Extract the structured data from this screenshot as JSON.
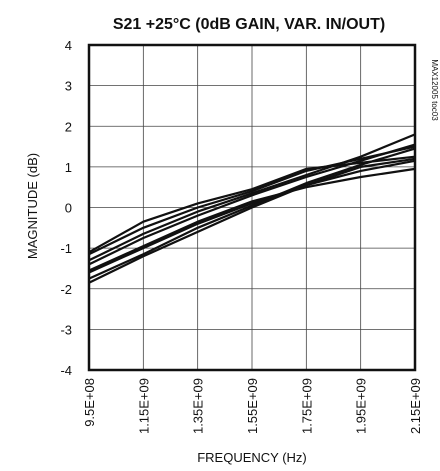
{
  "chart_data": {
    "type": "line",
    "title": "S21 +25°C (0dB GAIN, VAR. IN/OUT)",
    "xlabel": "FREQUENCY (Hz)",
    "ylabel": "MAGNITUDE (dB)",
    "figure_code": "MAX12005 toc03",
    "xlim": [
      950000000,
      2150000000
    ],
    "ylim": [
      -4,
      4
    ],
    "grid": true,
    "x_ticks": [
      950000000,
      1150000000,
      1350000000,
      1550000000,
      1750000000,
      1950000000,
      2150000000
    ],
    "x_tick_labels": [
      "9.5E+08",
      "1.15E+09",
      "1.35E+09",
      "1.55E+09",
      "1.75E+09",
      "1.95E+09",
      "2.15E+09"
    ],
    "y_ticks": [
      -4,
      -3,
      -2,
      -1,
      0,
      1,
      2,
      3,
      4
    ],
    "y_tick_labels": [
      "-4",
      "-3",
      "-2",
      "-1",
      "0",
      "1",
      "2",
      "3",
      "4"
    ],
    "x": [
      950000000,
      1150000000,
      1350000000,
      1550000000,
      1750000000,
      1950000000,
      2150000000
    ],
    "series": [
      {
        "values": [
          -1.85,
          -1.2,
          -0.6,
          0.0,
          0.55,
          1.0,
          1.2
        ]
      },
      {
        "values": [
          -1.75,
          -1.15,
          -0.5,
          0.05,
          0.6,
          1.05,
          1.45
        ]
      },
      {
        "values": [
          -1.6,
          -1.0,
          -0.4,
          0.1,
          0.55,
          0.9,
          1.15
        ]
      },
      {
        "values": [
          -1.55,
          -0.95,
          -0.35,
          0.15,
          0.5,
          0.75,
          0.95
        ]
      },
      {
        "values": [
          -1.4,
          -0.75,
          -0.2,
          0.3,
          0.75,
          1.15,
          1.55
        ]
      },
      {
        "values": [
          -1.3,
          -0.65,
          -0.1,
          0.35,
          0.8,
          1.25,
          1.8
        ]
      },
      {
        "values": [
          -1.15,
          -0.5,
          0.0,
          0.4,
          0.9,
          1.2,
          1.5
        ]
      },
      {
        "values": [
          -1.1,
          -0.35,
          0.1,
          0.45,
          0.95,
          1.1,
          1.25
        ]
      }
    ]
  }
}
